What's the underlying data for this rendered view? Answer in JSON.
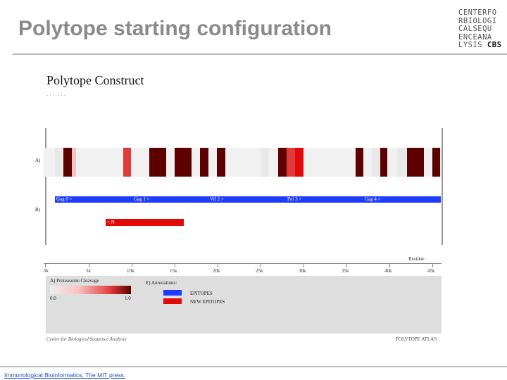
{
  "slide": {
    "title": "Polytope starting configuration",
    "logo_lines": [
      "CENTERFO",
      "RBIOLOGI",
      "CALSEQU",
      "ENCEANA"
    ],
    "logo_last_plain": "LYSIS ",
    "logo_last_bold": "CBS",
    "credit": "Immunological Bioinformatics, The MIT press."
  },
  "figure": {
    "title": "Polytope Construct",
    "row_a_label": "A)",
    "row_b_label": "B)",
    "blocks": [
      {
        "label": "Gag 0 >"
      },
      {
        "label": "Gag 1 >"
      },
      {
        "label": "Vif 2 >"
      },
      {
        "label": "Pol 3 >"
      },
      {
        "label": "Gag 4 >"
      }
    ],
    "new_epitope_label": "< N",
    "axis_title": "Residue",
    "ticks": [
      "0k",
      "5k",
      "10k",
      "15k",
      "20k",
      "25k",
      "30k",
      "35k",
      "40k",
      "45k"
    ],
    "legend": {
      "cleavage_title": "A) Proteasome Cleavage",
      "cleavage_min": "0.0",
      "cleavage_max": "1.0",
      "annotations_title": "E) Annotations:",
      "items": [
        {
          "label": "EPITOPES",
          "color": "#1e3bff"
        },
        {
          "label": "NEW EPITOPES",
          "color": "#e30909"
        }
      ]
    },
    "footer_left_line1": "Center for Biological Sequence Analysis",
    "footer_right": "POLYTOPE ATLAS"
  },
  "colors": {
    "cleavage_strong": "#5c0000",
    "cleavage_medium": "#e03b3b",
    "cleavage_weak": "#f3c4c4",
    "cleavage_faint": "#e8e8e8",
    "epitope": "#1e3bff",
    "new_epitope": "#e30909"
  }
}
